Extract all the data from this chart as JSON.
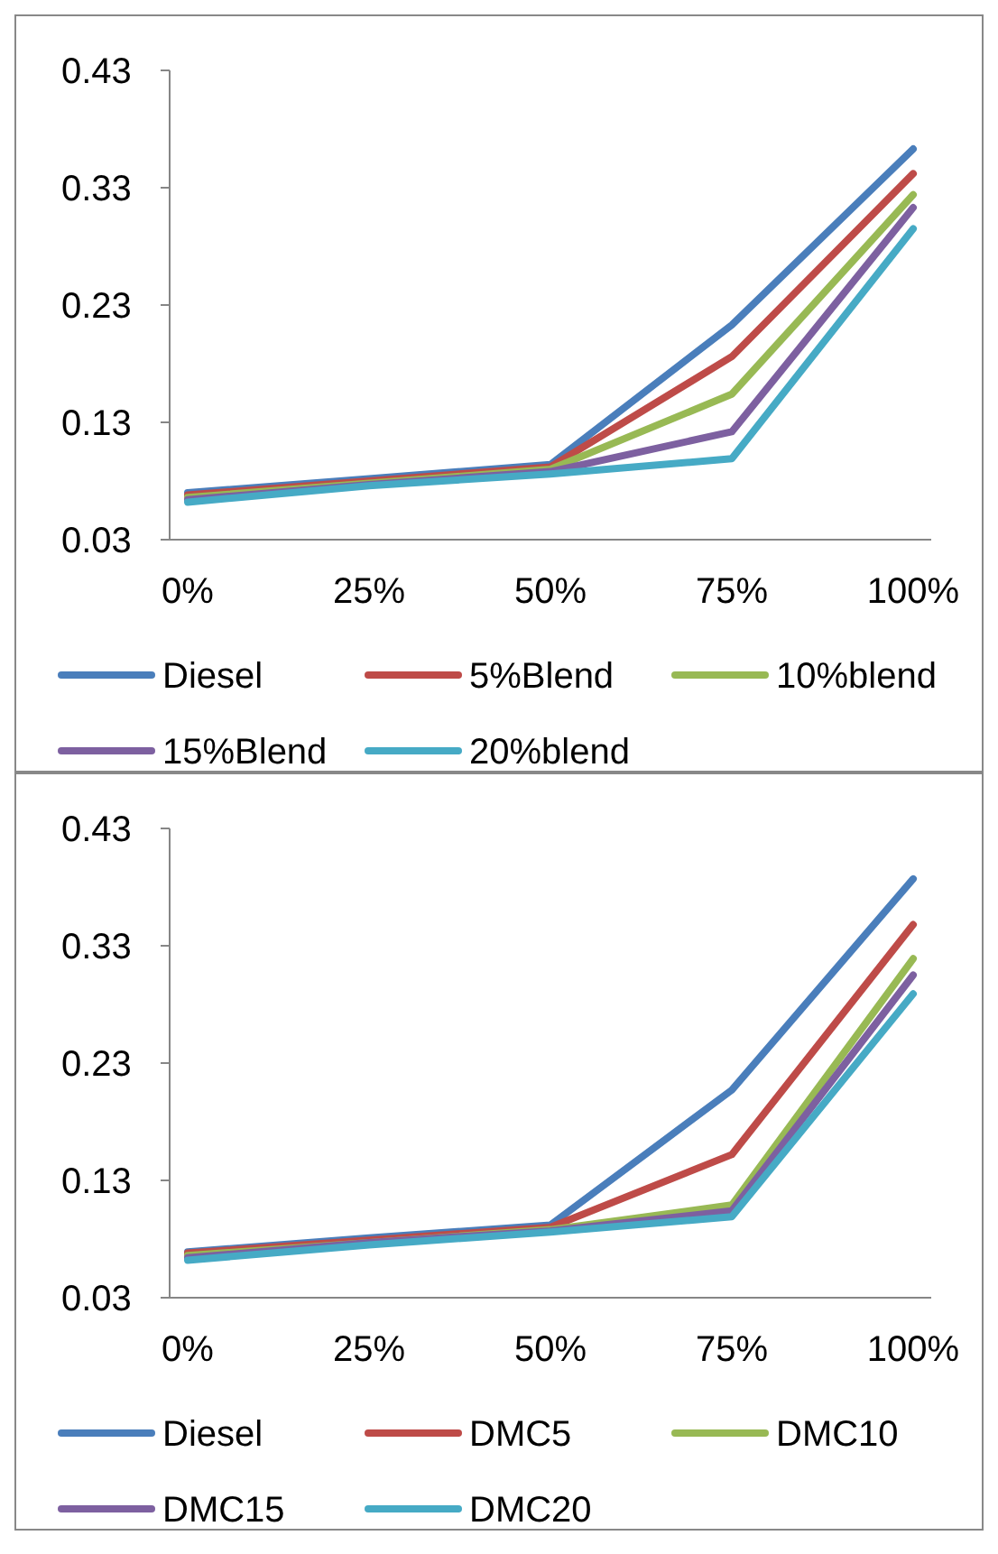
{
  "chart_data": [
    {
      "type": "line",
      "categories": [
        "0%",
        "25%",
        "50%",
        "75%",
        "100%"
      ],
      "ylim": [
        0.03,
        0.43
      ],
      "yticks": [
        0.03,
        0.13,
        0.23,
        0.33,
        0.43
      ],
      "grid": false,
      "legend": "bottom",
      "marker": "none",
      "line_style": "solid",
      "series": [
        {
          "name": "Diesel",
          "color": "#4a7ebb",
          "values": [
            0.07,
            0.082,
            0.094,
            0.213,
            0.363
          ]
        },
        {
          "name": "5%Blend",
          "color": "#be4b48",
          "values": [
            0.068,
            0.08,
            0.092,
            0.186,
            0.342
          ]
        },
        {
          "name": "10%blend",
          "color": "#98b954",
          "values": [
            0.066,
            0.078,
            0.09,
            0.154,
            0.324
          ]
        },
        {
          "name": "15%Blend",
          "color": "#7d60a0",
          "values": [
            0.064,
            0.077,
            0.088,
            0.122,
            0.313
          ]
        },
        {
          "name": "20%blend",
          "color": "#46aac5",
          "values": [
            0.062,
            0.076,
            0.086,
            0.099,
            0.295
          ]
        }
      ]
    },
    {
      "type": "line",
      "categories": [
        "0%",
        "25%",
        "50%",
        "75%",
        "100%"
      ],
      "ylim": [
        0.03,
        0.43
      ],
      "yticks": [
        0.03,
        0.13,
        0.23,
        0.33,
        0.43
      ],
      "grid": false,
      "legend": "bottom",
      "marker": "none",
      "line_style": "solid",
      "series": [
        {
          "name": "Diesel",
          "color": "#4a7ebb",
          "values": [
            0.069,
            0.081,
            0.092,
            0.207,
            0.387
          ]
        },
        {
          "name": "DMC5",
          "color": "#be4b48",
          "values": [
            0.068,
            0.079,
            0.09,
            0.152,
            0.348
          ]
        },
        {
          "name": "DMC10",
          "color": "#98b954",
          "values": [
            0.066,
            0.077,
            0.088,
            0.109,
            0.319
          ]
        },
        {
          "name": "DMC15",
          "color": "#7d60a0",
          "values": [
            0.064,
            0.077,
            0.087,
            0.104,
            0.305
          ]
        },
        {
          "name": "DMC20",
          "color": "#46aac5",
          "values": [
            0.062,
            0.075,
            0.086,
            0.099,
            0.289
          ]
        }
      ]
    }
  ]
}
